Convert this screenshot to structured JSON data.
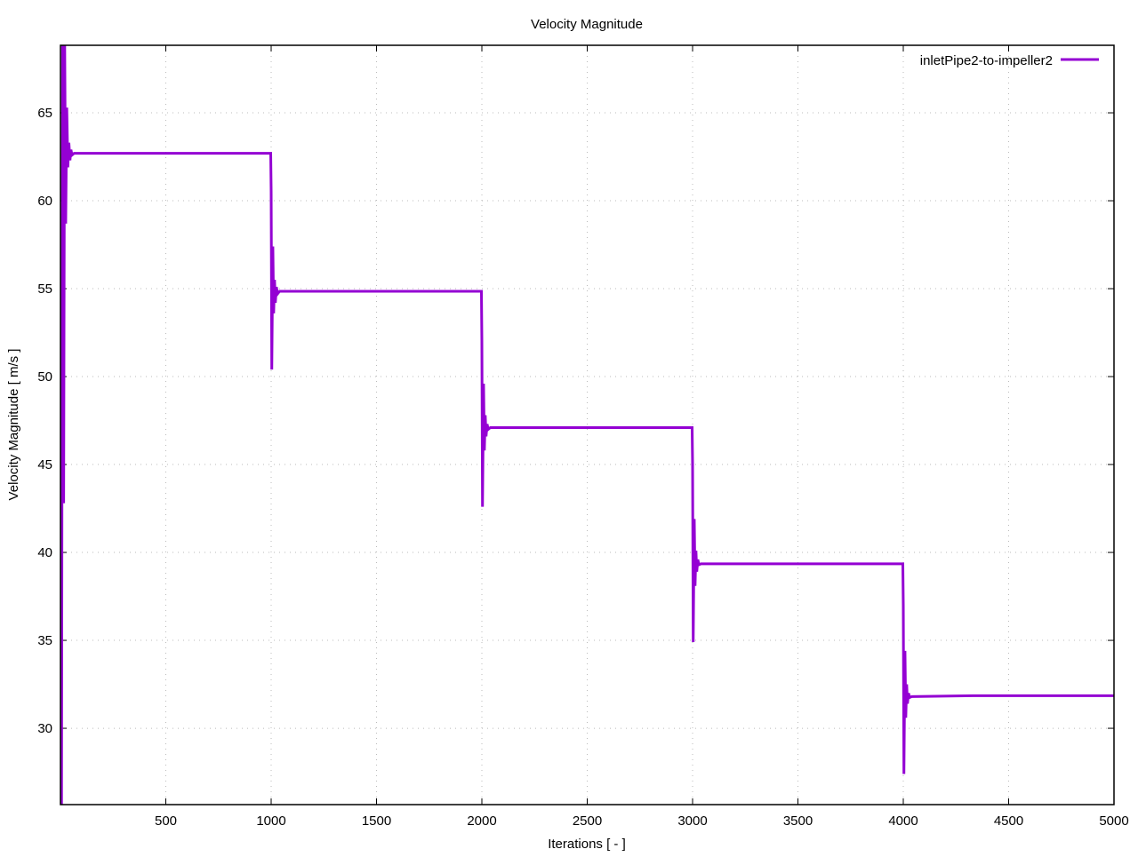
{
  "chart_data": {
    "type": "line",
    "title": "Velocity Magnitude",
    "xlabel": "Iterations [ - ]",
    "ylabel": "Velocity Magnitude [ m/s ]",
    "xlim": [
      0,
      5000
    ],
    "ylim": [
      25.66,
      68.84
    ],
    "xticks": [
      500,
      1000,
      1500,
      2000,
      2500,
      3000,
      3500,
      4000,
      4500,
      5000
    ],
    "yticks": [
      30,
      35,
      40,
      45,
      50,
      55,
      60,
      65
    ],
    "grid": true,
    "legend_position": "top-right",
    "series": [
      {
        "name": "inletPipe2-to-impeller2",
        "color": "#9400d3",
        "points": [
          [
            5,
            25
          ],
          [
            10,
            69.5
          ],
          [
            15,
            42.8
          ],
          [
            20,
            69.5
          ],
          [
            25,
            58.7
          ],
          [
            30,
            65.3
          ],
          [
            35,
            61.9
          ],
          [
            40,
            63.3
          ],
          [
            45,
            62.3
          ],
          [
            50,
            62.9
          ],
          [
            55,
            62.6
          ],
          [
            65,
            62.7
          ],
          [
            998,
            62.7
          ],
          [
            1000,
            60.5
          ],
          [
            1003,
            50.4
          ],
          [
            1008,
            57.4
          ],
          [
            1012,
            53.6
          ],
          [
            1016,
            55.5
          ],
          [
            1020,
            54.2
          ],
          [
            1025,
            55.1
          ],
          [
            1030,
            54.7
          ],
          [
            1040,
            54.85
          ],
          [
            1998,
            54.85
          ],
          [
            2000,
            52.0
          ],
          [
            2003,
            42.6
          ],
          [
            2008,
            49.6
          ],
          [
            2012,
            45.8
          ],
          [
            2016,
            47.8
          ],
          [
            2020,
            46.6
          ],
          [
            2025,
            47.3
          ],
          [
            2030,
            47.0
          ],
          [
            2040,
            47.1
          ],
          [
            2998,
            47.1
          ],
          [
            3000,
            45.0
          ],
          [
            3003,
            34.9
          ],
          [
            3008,
            41.9
          ],
          [
            3012,
            38.1
          ],
          [
            3016,
            40.1
          ],
          [
            3020,
            38.9
          ],
          [
            3025,
            39.6
          ],
          [
            3030,
            39.3
          ],
          [
            3040,
            39.35
          ],
          [
            3998,
            39.35
          ],
          [
            4000,
            37.0
          ],
          [
            4003,
            27.4
          ],
          [
            4008,
            34.4
          ],
          [
            4012,
            30.6
          ],
          [
            4016,
            32.5
          ],
          [
            4020,
            31.4
          ],
          [
            4025,
            32.0
          ],
          [
            4030,
            31.75
          ],
          [
            4040,
            31.8
          ],
          [
            4330,
            31.85
          ],
          [
            5000,
            31.85
          ]
        ]
      }
    ]
  }
}
